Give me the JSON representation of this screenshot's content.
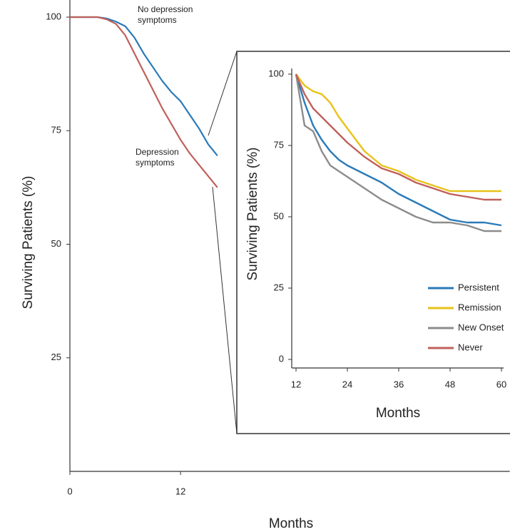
{
  "chart_data": [
    {
      "type": "line",
      "y_label": "Surviving Patients (%)",
      "x_label": "Months",
      "x": [
        0,
        3,
        4,
        5,
        6,
        7,
        8,
        9,
        10,
        11,
        12,
        13,
        14,
        15,
        16
      ],
      "series": [
        {
          "name": "No depression symptoms",
          "color": "#2a7ab8",
          "values": [
            100,
            100,
            99.7,
            99,
            98,
            95.5,
            92,
            89,
            86,
            83.5,
            81.5,
            78.5,
            75.5,
            72,
            69.5
          ]
        },
        {
          "name": "Depression symptoms",
          "color": "#c0605a",
          "values": [
            100,
            100,
            99.5,
            98.5,
            96,
            92,
            88,
            84,
            80,
            76.5,
            73,
            70,
            67.5,
            65,
            62.5
          ]
        }
      ],
      "xlim": [
        0,
        47.7
      ],
      "ylim": [
        0,
        100
      ],
      "xticks": [
        0,
        12
      ],
      "yticks": [
        25,
        50,
        75,
        100
      ],
      "legend": "inline"
    },
    {
      "type": "line",
      "y_label": "Surviving Patients (%)",
      "x_label": "Months",
      "x": [
        12,
        14,
        16,
        18,
        20,
        22,
        24,
        28,
        32,
        36,
        40,
        44,
        48,
        52,
        56,
        60
      ],
      "series": [
        {
          "name": "Persistent",
          "color": "#2a7ab8",
          "values": [
            100,
            90,
            82,
            77,
            73,
            70,
            68,
            65,
            62,
            58,
            55,
            52,
            49,
            48,
            48,
            47
          ]
        },
        {
          "name": "Remission",
          "color": "#e8c21a",
          "values": [
            100,
            96,
            94,
            93,
            90,
            85,
            81,
            73,
            68,
            66,
            63,
            61,
            59,
            59,
            59,
            59
          ]
        },
        {
          "name": "New Onset",
          "color": "#8c8c8c",
          "values": [
            100,
            82,
            80,
            73,
            68,
            66,
            64,
            60,
            56,
            53,
            50,
            48,
            48,
            47,
            45,
            45
          ]
        },
        {
          "name": "Never",
          "color": "#c0605a",
          "values": [
            100,
            93,
            88,
            85,
            82,
            79,
            76,
            71,
            67,
            65,
            62,
            60,
            58,
            57,
            56,
            56
          ]
        }
      ],
      "xlim": [
        11,
        60.5
      ],
      "ylim": [
        -3,
        102
      ],
      "xticks": [
        12,
        24,
        36,
        48,
        60
      ],
      "yticks": [
        0,
        25,
        50,
        75,
        100
      ],
      "legend": "lower right"
    }
  ]
}
